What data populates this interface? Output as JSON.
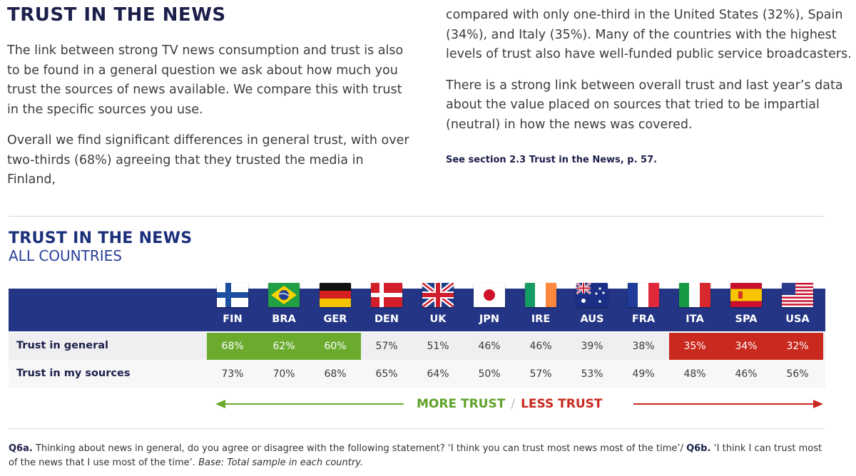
{
  "heading": "TRUST IN THE NEWS",
  "left_paragraphs": [
    "The link between strong TV news consumption and trust is also to be found in a general question we ask about how much you trust the sources of news available. We compare this with trust in the specific sources you use.",
    "Overall we find significant differences in general trust, with over two-thirds (68%) agreeing that they trusted the media in Finland,"
  ],
  "right_paragraphs": [
    "compared with only one-third in the United States (32%), Spain (34%), and Italy (35%). Many of the countries with the highest levels of trust also have well-funded public service broadcasters.",
    "There is a strong link between overall trust and last year’s data about the value placed on sources that tried to be impartial (neutral) in how the news was covered."
  ],
  "see_ref": "See section 2.3 Trust in the News, p. 57.",
  "table": {
    "title": "TRUST IN THE NEWS",
    "subtitle": "ALL COUNTRIES",
    "countries": [
      {
        "code": "FIN",
        "flag": "finland-flag-icon"
      },
      {
        "code": "BRA",
        "flag": "brazil-flag-icon"
      },
      {
        "code": "GER",
        "flag": "germany-flag-icon"
      },
      {
        "code": "DEN",
        "flag": "denmark-flag-icon"
      },
      {
        "code": "UK",
        "flag": "uk-flag-icon"
      },
      {
        "code": "JPN",
        "flag": "japan-flag-icon"
      },
      {
        "code": "IRE",
        "flag": "ireland-flag-icon"
      },
      {
        "code": "AUS",
        "flag": "australia-flag-icon"
      },
      {
        "code": "FRA",
        "flag": "france-flag-icon"
      },
      {
        "code": "ITA",
        "flag": "italy-flag-icon"
      },
      {
        "code": "SPA",
        "flag": "spain-flag-icon"
      },
      {
        "code": "USA",
        "flag": "usa-flag-icon"
      }
    ],
    "rows": [
      {
        "label": "Trust in general",
        "values": [
          "68%",
          "62%",
          "60%",
          "57%",
          "51%",
          "46%",
          "46%",
          "39%",
          "38%",
          "35%",
          "34%",
          "32%"
        ],
        "highlight": [
          "green",
          "green",
          "green",
          "",
          "",
          "",
          "",
          "",
          "",
          "red",
          "red",
          "red"
        ]
      },
      {
        "label": "Trust in my sources",
        "values": [
          "73%",
          "70%",
          "68%",
          "65%",
          "64%",
          "50%",
          "57%",
          "53%",
          "49%",
          "48%",
          "46%",
          "56%"
        ],
        "highlight": [
          "",
          "",
          "",
          "",
          "",
          "",
          "",
          "",
          "",
          "",
          "",
          ""
        ]
      }
    ],
    "legend": {
      "more": "MORE TRUST",
      "separator": "/",
      "less": "LESS TRUST"
    },
    "colors": {
      "band": "#233584",
      "more": "#6aab2e",
      "less": "#c9291e"
    }
  },
  "footnote": {
    "q6a_label": "Q6a.",
    "q6a_text": " Thinking about news in general, do you agree or disagree with the following statement? ‘I think you can trust most news most of the time’/ ",
    "q6b_label": "Q6b.",
    "q6b_text": " ‘I think I can trust most of the news that I use most of the time’. ",
    "base": "Base: Total sample in each country."
  }
}
